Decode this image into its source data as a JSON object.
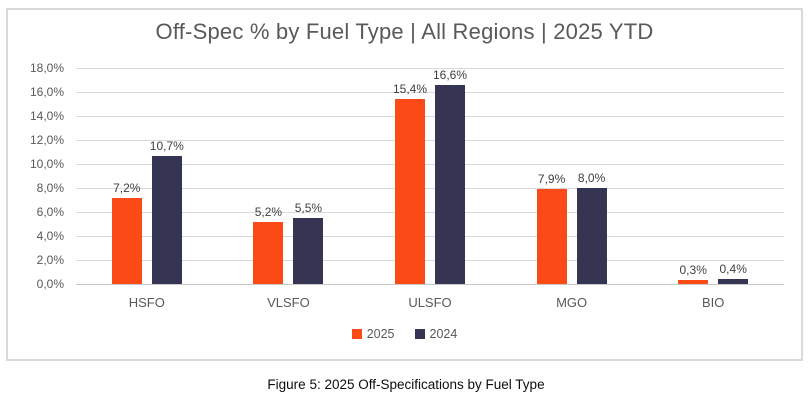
{
  "figure": {
    "caption": "Figure 5: 2025 Off-Specifications by Fuel Type"
  },
  "chart_data": {
    "type": "bar",
    "title": "Off-Spec % by Fuel Type | All Regions | 2025 YTD",
    "categories": [
      "HSFO",
      "VLSFO",
      "ULSFO",
      "MGO",
      "BIO"
    ],
    "series": [
      {
        "name": "2025",
        "color": "#FC4A17",
        "values": [
          7.2,
          5.2,
          15.4,
          7.9,
          0.3
        ],
        "labels": [
          "7,2%",
          "5,2%",
          "15,4%",
          "7,9%",
          "0,3%"
        ]
      },
      {
        "name": "2024",
        "color": "#353452",
        "values": [
          10.7,
          5.5,
          16.6,
          8.0,
          0.4
        ],
        "labels": [
          "10,7%",
          "5,5%",
          "16,6%",
          "8,0%",
          "0,4%"
        ]
      }
    ],
    "ylim": [
      0,
      18
    ],
    "ytick_step": 2,
    "yticks": [
      "0,0%",
      "2,0%",
      "4,0%",
      "6,0%",
      "8,0%",
      "10,0%",
      "12,0%",
      "14,0%",
      "16,0%",
      "18,0%"
    ],
    "xlabel": "",
    "ylabel": "",
    "grid": true,
    "legend_position": "bottom",
    "colors": {
      "gridline": "#D9D9D9",
      "card_border": "#D9D9D9",
      "tick_label": "#595959",
      "data_label": "#404040",
      "title": "#595959"
    }
  }
}
